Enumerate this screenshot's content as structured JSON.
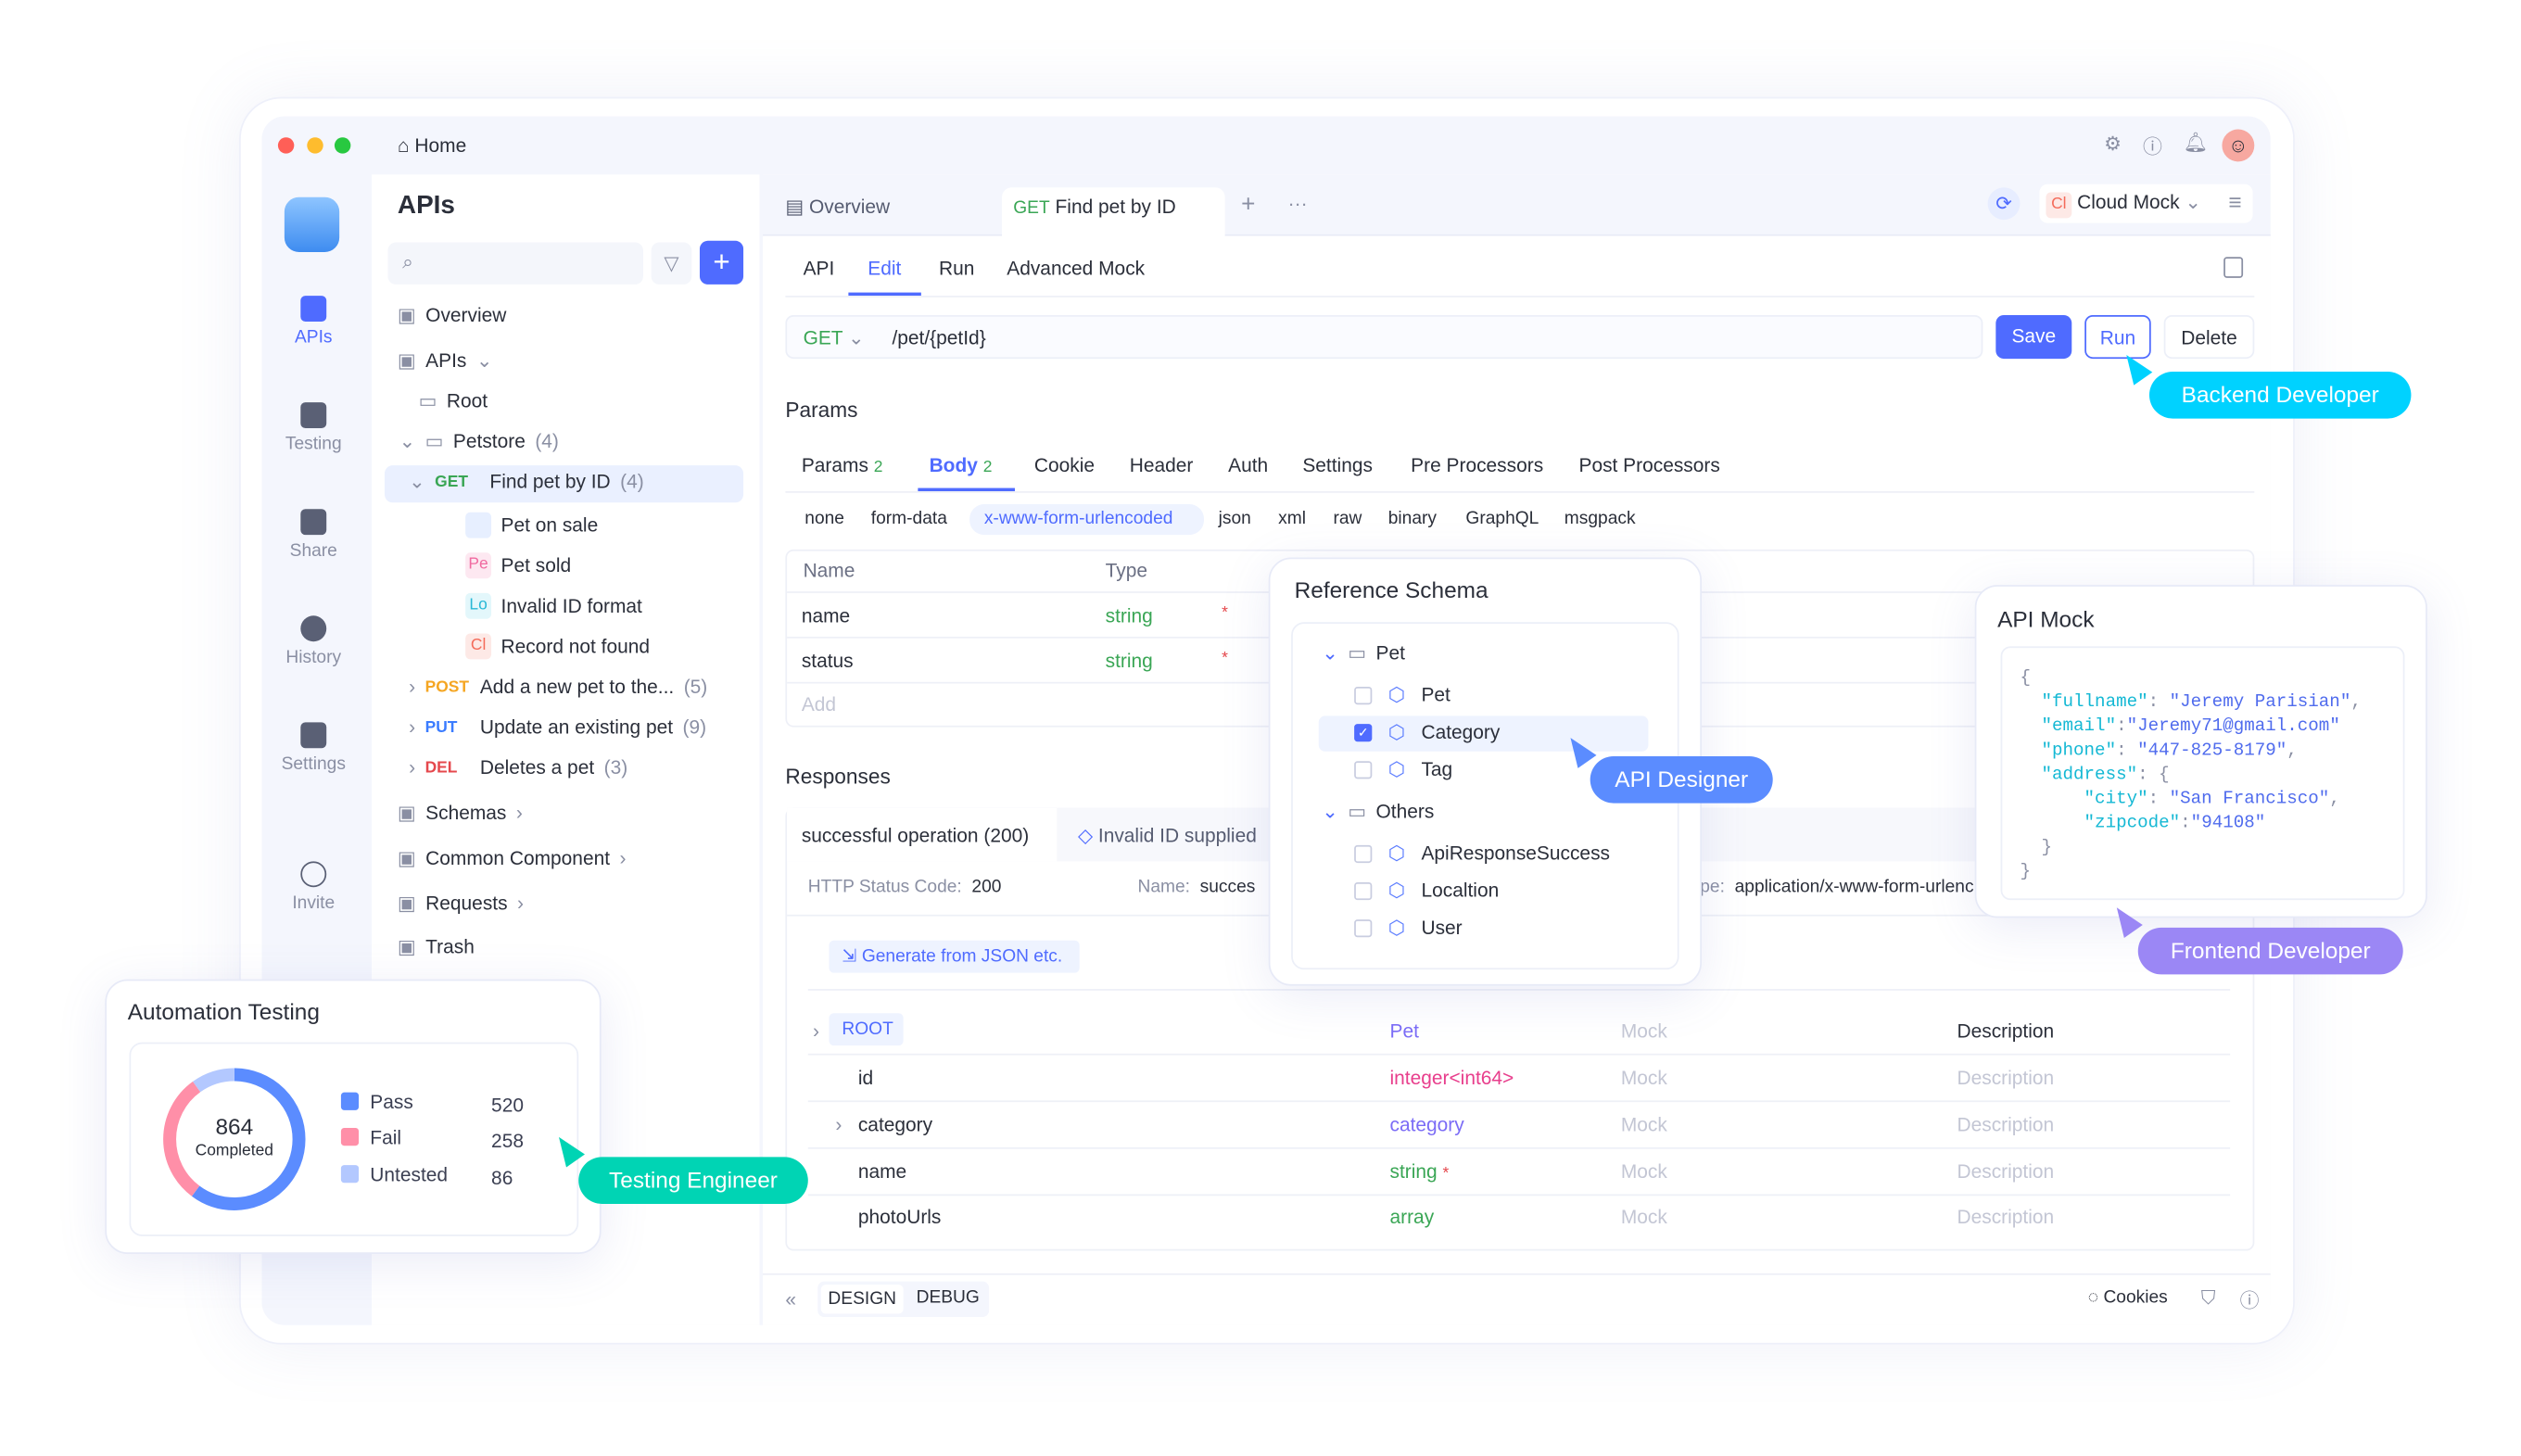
{
  "window": {
    "home": "Home"
  },
  "rail": [
    {
      "label": "APIs",
      "active": true
    },
    {
      "label": "Testing"
    },
    {
      "label": "Share"
    },
    {
      "label": "History"
    },
    {
      "label": "Settings"
    },
    {
      "label": "Invite"
    }
  ],
  "sidebar": {
    "title": "APIs",
    "search_placeholder": "",
    "tree": [
      {
        "label": "Overview",
        "icon": "overview-icon"
      },
      {
        "label": "APIs",
        "icon": "apis-icon"
      },
      {
        "label": "Root",
        "icon": "folder-icon"
      },
      {
        "label": "Petstore",
        "count": "(4)",
        "icon": "folder-icon"
      },
      {
        "method": "GET",
        "label": "Find pet by ID",
        "count": "(4)"
      },
      {
        "badge": "",
        "label": "Pet on sale"
      },
      {
        "badge": "Pe",
        "label": "Pet sold"
      },
      {
        "badge": "Lo",
        "label": "Invalid ID format"
      },
      {
        "badge": "Cl",
        "label": "Record not found"
      },
      {
        "method": "POST",
        "label": "Add a new pet to the...",
        "count": "(5)"
      },
      {
        "method": "PUT",
        "label": "Update an existing pet",
        "count": "(9)"
      },
      {
        "method": "DEL",
        "label": "Deletes a pet",
        "count": "(3)"
      },
      {
        "label": "Schemas",
        "icon": "schema-icon"
      },
      {
        "label": "Common Component",
        "icon": "component-icon"
      },
      {
        "label": "Requests",
        "icon": "request-icon"
      },
      {
        "label": "Trash",
        "icon": "trash-icon"
      }
    ]
  },
  "tabs": {
    "overview": "Overview",
    "active_method": "GET",
    "active_label": "Find pet by ID",
    "env_badge": "Cl",
    "env": "Cloud Mock"
  },
  "subtabs": [
    "API",
    "Edit",
    "Run",
    "Advanced Mock"
  ],
  "request": {
    "method": "GET",
    "url": "/pet/{petId}",
    "save": "Save",
    "run": "Run",
    "delete": "Delete"
  },
  "params": {
    "heading": "Params",
    "tabs": [
      {
        "label": "Params",
        "count": "2"
      },
      {
        "label": "Body",
        "count": "2"
      },
      {
        "label": "Cookie"
      },
      {
        "label": "Header"
      },
      {
        "label": "Auth"
      },
      {
        "label": "Settings"
      },
      {
        "label": "Pre Processors"
      },
      {
        "label": "Post Processors"
      }
    ],
    "body_types": [
      "none",
      "form-data",
      "x-www-form-urlencoded",
      "json",
      "xml",
      "raw",
      "binary",
      "GraphQL",
      "msgpack"
    ],
    "columns": [
      "Name",
      "Type"
    ],
    "rows": [
      {
        "name": "name",
        "type": "string",
        "required": "*"
      },
      {
        "name": "status",
        "type": "string",
        "required": "*"
      }
    ],
    "add": "Add"
  },
  "responses": {
    "heading": "Responses",
    "tabs": [
      "successful operation (200)",
      "Invalid ID supplied"
    ],
    "status_label": "HTTP Status Code:",
    "status": "200",
    "name_label": "Name:",
    "name": "succes",
    "type_label": "pe:",
    "type": "application/x-www-form-urlenc",
    "generate": "Generate from JSON etc.",
    "schema": [
      {
        "name": "ROOT",
        "type": "Pet",
        "mock": "Mock",
        "desc": "Description"
      },
      {
        "name": "id",
        "type": "integer<int64>",
        "mock": "Mock",
        "desc": "Description"
      },
      {
        "name": "category",
        "type": "category",
        "mock": "Mock",
        "desc": "Description"
      },
      {
        "name": "name",
        "type": "string",
        "req": "*",
        "mock": "Mock",
        "desc": "Description"
      },
      {
        "name": "photoUrls",
        "type": "array",
        "mock": "Mock",
        "desc": "Description"
      }
    ]
  },
  "footer": {
    "design": "DESIGN",
    "debug": "DEBUG",
    "cookies": "Cookies"
  },
  "reference_schema": {
    "title": "Reference Schema",
    "groups": [
      {
        "label": "Pet",
        "items": [
          {
            "label": "Pet",
            "checked": false
          },
          {
            "label": "Category",
            "checked": true
          },
          {
            "label": "Tag",
            "checked": false
          }
        ]
      },
      {
        "label": "Others",
        "items": [
          {
            "label": "ApiResponseSuccess",
            "checked": false
          },
          {
            "label": "Localtion",
            "checked": false
          },
          {
            "label": "User",
            "checked": false
          }
        ]
      }
    ]
  },
  "api_mock": {
    "title": "API Mock",
    "fullname": "Jeremy Parisian",
    "email": "Jeremy71@gmail.com",
    "phone": "447-825-8179",
    "city": "San Francisco",
    "zipcode": "94108"
  },
  "automation": {
    "title": "Automation Testing",
    "total": "864",
    "total_label": "Completed",
    "items": [
      {
        "label": "Pass",
        "value": 520,
        "color": "#5b8cff"
      },
      {
        "label": "Fail",
        "value": 258,
        "color": "#ff8fa8"
      },
      {
        "label": "Untested",
        "value": 86,
        "color": "#b3c8ff"
      }
    ]
  },
  "roles": {
    "backend": "Backend Developer",
    "designer": "API Designer",
    "frontend": "Frontend Developer",
    "tester": "Testing Engineer"
  },
  "colors": {
    "accent": "#4f6bff",
    "get": "#3aa655",
    "post": "#f5a623",
    "put": "#3b7cff",
    "del": "#e5484d",
    "backend": "#00d2ff",
    "designer": "#5b8cff",
    "frontend": "#9b87f5",
    "tester": "#00d4b4"
  }
}
